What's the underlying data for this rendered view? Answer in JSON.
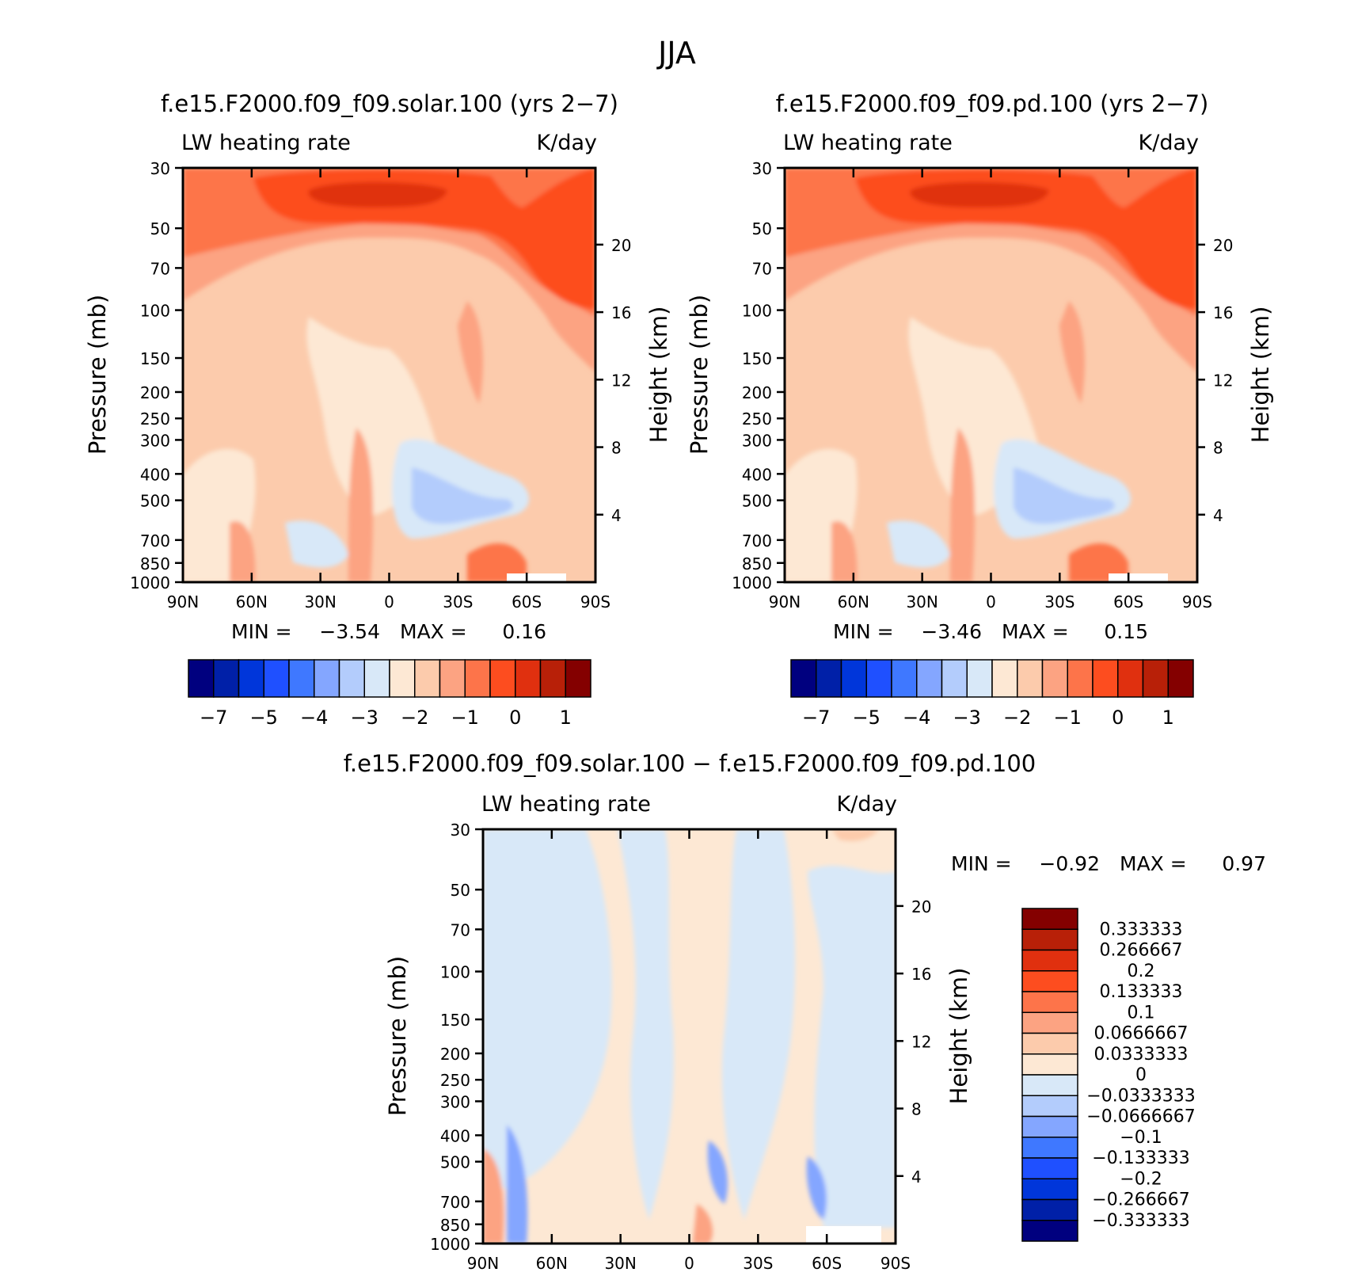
{
  "page_title": "JJA",
  "colors": {
    "abs_fill": [
      "#00007f",
      "#0020a8",
      "#0036da",
      "#1f50ff",
      "#3f78ff",
      "#84a6ff",
      "#b3ccfc",
      "#d8e8f8",
      "#fde8d4",
      "#fccbac",
      "#fca382",
      "#fd744a",
      "#fd4d1f",
      "#e0300f",
      "#b82008",
      "#840000"
    ],
    "diff_fill": [
      "#00007f",
      "#0020a8",
      "#0036da",
      "#1f50ff",
      "#3f78ff",
      "#84a6ff",
      "#b3ccfc",
      "#d8e8f8",
      "#fde8d4",
      "#fccbac",
      "#fca382",
      "#fd744a",
      "#fd4d1f",
      "#e0300f",
      "#b82008",
      "#840000"
    ]
  },
  "panel_a": {
    "title": "f.e15.F2000.f09_f09.solar.100 (yrs 2−7)",
    "var_label": "LW heating rate",
    "units": "K/day",
    "min_label": "MIN =",
    "min_value": "−3.54",
    "max_label": "MAX =",
    "max_value": "0.16"
  },
  "panel_b": {
    "title": "f.e15.F2000.f09_f09.pd.100 (yrs 2−7)",
    "var_label": "LW heating rate",
    "units": "K/day",
    "min_label": "MIN =",
    "min_value": "−3.46",
    "max_label": "MAX =",
    "max_value": "0.15"
  },
  "panel_c": {
    "title": "f.e15.F2000.f09_f09.solar.100 − f.e15.F2000.f09_f09.pd.100",
    "var_label": "LW heating rate",
    "units": "K/day",
    "min_label": "MIN =",
    "min_value": "−0.92",
    "max_label": "MAX =",
    "max_value": "0.97"
  },
  "axes": {
    "ylabel_left": "Pressure (mb)",
    "ylabel_right": "Height (km)",
    "pressure_ticks": [
      "30",
      "50",
      "70",
      "100",
      "150",
      "200",
      "250",
      "300",
      "400",
      "500",
      "700",
      "850",
      "1000"
    ],
    "height_ticks": [
      "20",
      "16",
      "12",
      "8",
      "4"
    ],
    "lat_ticks": [
      "90N",
      "60N",
      "30N",
      "0",
      "30S",
      "60S",
      "90S"
    ]
  },
  "abs_colorbar_labels": [
    "−7",
    "−5",
    "−4",
    "−3",
    "−2",
    "−1",
    "0",
    "1"
  ],
  "diff_colorbar_labels": [
    "0.333333",
    "0.266667",
    "0.2",
    "0.133333",
    "0.1",
    "0.0666667",
    "0.0333333",
    "0",
    "−0.0333333",
    "−0.0666667",
    "−0.1",
    "−0.133333",
    "−0.2",
    "−0.266667",
    "−0.333333"
  ],
  "chart_data": [
    {
      "type": "heatmap",
      "title": "f.e15.F2000.f09_f09.solar.100 (yrs 2−7)",
      "xlabel": "",
      "ylabel": "Pressure (mb)",
      "y2label": "Height (km)",
      "x_ticks": [
        "90N",
        "60N",
        "30N",
        "0",
        "30S",
        "60S",
        "90S"
      ],
      "xlim": [
        90,
        -90
      ],
      "ylim_mb": [
        1000,
        30
      ],
      "y_scale": "log",
      "y_ticks_mb": [
        30,
        50,
        70,
        100,
        150,
        200,
        250,
        300,
        400,
        500,
        700,
        850,
        1000
      ],
      "y2_ticks_km": [
        20,
        16,
        12,
        8,
        4
      ],
      "colorbar_ticks": [
        -7,
        -5,
        -4,
        -3,
        -2,
        -1,
        0,
        1
      ],
      "min": -3.54,
      "max": 0.16
    },
    {
      "type": "heatmap",
      "title": "f.e15.F2000.f09_f09.pd.100 (yrs 2−7)",
      "xlabel": "",
      "ylabel": "Pressure (mb)",
      "y2label": "Height (km)",
      "x_ticks": [
        "90N",
        "60N",
        "30N",
        "0",
        "30S",
        "60S",
        "90S"
      ],
      "xlim": [
        90,
        -90
      ],
      "ylim_mb": [
        1000,
        30
      ],
      "y_scale": "log",
      "y_ticks_mb": [
        30,
        50,
        70,
        100,
        150,
        200,
        250,
        300,
        400,
        500,
        700,
        850,
        1000
      ],
      "y2_ticks_km": [
        20,
        16,
        12,
        8,
        4
      ],
      "colorbar_ticks": [
        -7,
        -5,
        -4,
        -3,
        -2,
        -1,
        0,
        1
      ],
      "min": -3.46,
      "max": 0.15
    },
    {
      "type": "heatmap",
      "title": "f.e15.F2000.f09_f09.solar.100 − f.e15.F2000.f09_f09.pd.100",
      "xlabel": "",
      "ylabel": "Pressure (mb)",
      "y2label": "Height (km)",
      "x_ticks": [
        "90N",
        "60N",
        "30N",
        "0",
        "30S",
        "60S",
        "90S"
      ],
      "xlim": [
        90,
        -90
      ],
      "ylim_mb": [
        1000,
        30
      ],
      "y_scale": "log",
      "y_ticks_mb": [
        30,
        50,
        70,
        100,
        150,
        200,
        250,
        300,
        400,
        500,
        700,
        850,
        1000
      ],
      "y2_ticks_km": [
        20,
        16,
        12,
        8,
        4
      ],
      "colorbar_ticks": [
        0.333333,
        0.266667,
        0.2,
        0.133333,
        0.1,
        0.0666667,
        0.0333333,
        0,
        -0.0333333,
        -0.0666667,
        -0.1,
        -0.133333,
        -0.2,
        -0.266667,
        -0.333333
      ],
      "min": -0.92,
      "max": 0.97
    }
  ]
}
